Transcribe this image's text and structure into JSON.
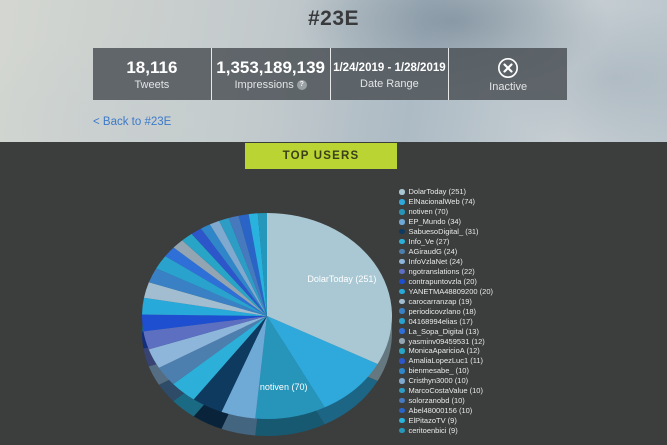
{
  "page": {
    "title": "#23E"
  },
  "stats": {
    "tweets": {
      "value": "18,116",
      "label": "Tweets"
    },
    "impressions": {
      "value": "1,353,189,139",
      "label": "Impressions",
      "info_icon": "?"
    },
    "date_range": {
      "value": "1/24/2019 - 1/28/2019",
      "label": "Date Range"
    },
    "status": {
      "label": "Inactive",
      "icon": "circled-x"
    }
  },
  "back_link": {
    "label": "< Back to #23E"
  },
  "section": {
    "button_label": "TOP USERS"
  },
  "colors": {
    "accent_green": "#b9d433",
    "link_blue": "#3c79c9",
    "dark_bg": "#3c3d3d",
    "stats_bar_bg": "rgba(78,83,88,0.85)"
  },
  "chart_data": {
    "type": "pie",
    "is3d": true,
    "title": "TOP USERS",
    "legend_position": "right",
    "legend_format": "name (value)",
    "labels": [
      "DolarToday",
      "ElNacionalWeb",
      "notiven",
      "EP_Mundo",
      "SabuesoDigital_",
      "Info_Ve",
      "AGiraudG",
      "InfoVzlaNet",
      "ngotranslations",
      "contrapuntovzla",
      "YANETMA48809200",
      "carocarranzap",
      "periodicovzlano",
      "04168994elias",
      "La_Sopa_Digital",
      "yasminv09459531",
      "MonicaAparicioA",
      "AmaliaLopezLuc1",
      "bienmesabe_",
      "Cristhyn3000",
      "MarcoCostaValue",
      "solorzanobd",
      "Abel48000156",
      "ElPitazoTV",
      "ceritoenbici"
    ],
    "values": [
      251,
      74,
      70,
      34,
      31,
      27,
      24,
      24,
      22,
      20,
      20,
      19,
      18,
      17,
      13,
      12,
      12,
      11,
      10,
      10,
      10,
      10,
      10,
      9,
      9
    ],
    "colors": [
      "#a9c8d3",
      "#2fa9dc",
      "#2794ba",
      "#6fa9d6",
      "#0e3a60",
      "#2cb0da",
      "#4d7fae",
      "#8db6da",
      "#5d6fc0",
      "#1e4fd0",
      "#27a9da",
      "#a2bdcf",
      "#3a80c4",
      "#2aa2ce",
      "#2f70d8",
      "#93a5b3",
      "#28a5c6",
      "#2c56ca",
      "#2f86c8",
      "#7fa9cf",
      "#2d9dc6",
      "#4679bd",
      "#2a64c6",
      "#29b2de",
      "#2597ba"
    ],
    "slice_labels": [
      {
        "index": 0,
        "text": "DolarToday (251)"
      },
      {
        "index": 2,
        "text": "notiven (70)"
      }
    ]
  }
}
